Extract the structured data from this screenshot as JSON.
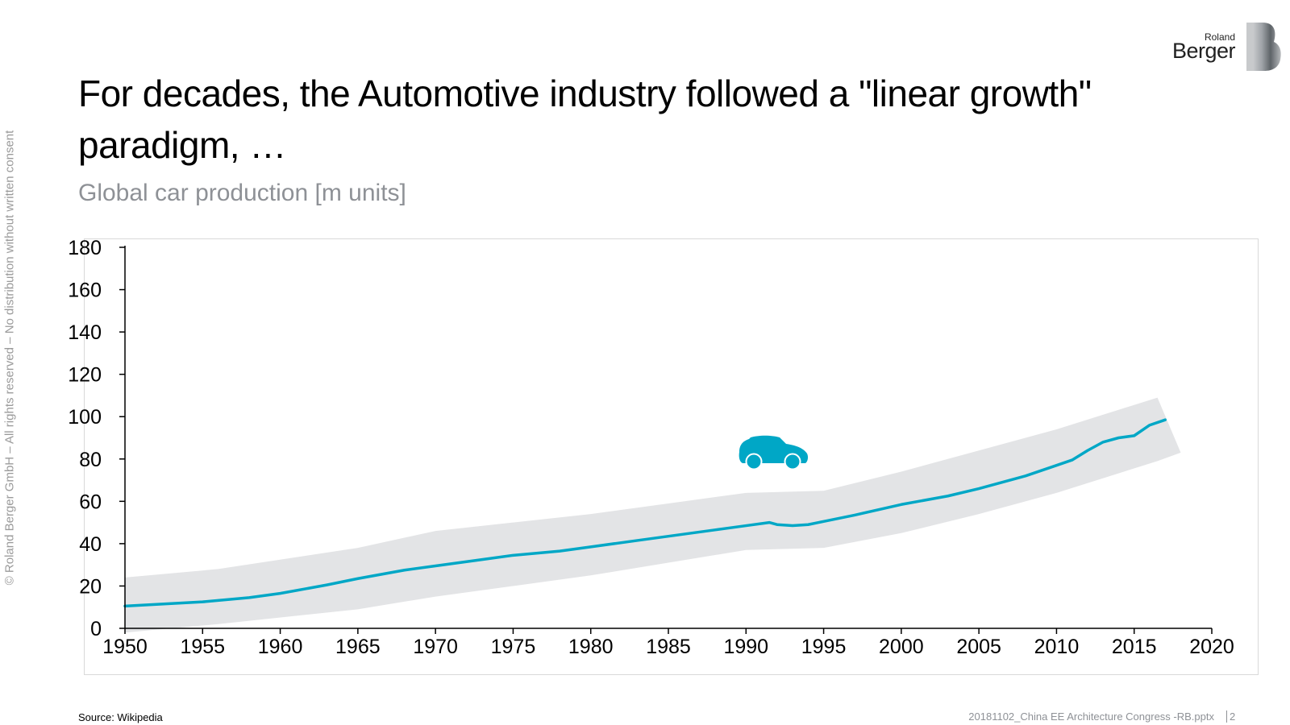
{
  "side_note": "© Roland Berger GmbH – All rights reserved – No distribution without written consent",
  "title": "For decades, the Automotive industry followed a \"linear growth\" paradigm, …",
  "logo": {
    "small": "Roland",
    "big": "Berger"
  },
  "footer": {
    "source": "Source: Wikipedia",
    "file": "20181102_China EE Architecture Congress -RB.pptx",
    "page": "2"
  },
  "colors": {
    "line": "#00a7c6",
    "band": "#e3e4e6",
    "axis": "#000000",
    "subtitle": "#8e9196"
  },
  "chart_data": {
    "type": "line",
    "title": "Global car production [m units]",
    "xlabel": "",
    "ylabel": "",
    "xlim": [
      1950,
      2020
    ],
    "ylim": [
      0,
      180
    ],
    "x_ticks": [
      "1950",
      "1955",
      "1960",
      "1965",
      "1970",
      "1975",
      "1980",
      "1985",
      "1990",
      "1995",
      "2000",
      "2005",
      "2010",
      "2015",
      "2020"
    ],
    "y_ticks": [
      "0",
      "20",
      "40",
      "60",
      "80",
      "100",
      "120",
      "140",
      "160",
      "180"
    ],
    "grid": false,
    "legend": "none",
    "annotation_icon": "car-icon",
    "series": [
      {
        "x": [
          1950,
          1955,
          1958,
          1960,
          1963,
          1965,
          1968,
          1970,
          1973,
          1975,
          1978,
          1980,
          1983,
          1985,
          1988,
          1990,
          1991.5,
          1992,
          1993,
          1994,
          1995,
          1997,
          2000,
          2003,
          2005,
          2008,
          2010,
          2011,
          2012,
          2013,
          2014,
          2015,
          2016,
          2017
        ],
        "y": [
          10.5,
          12.5,
          14.5,
          16.5,
          20.5,
          23.5,
          27.5,
          29.5,
          32.5,
          34.5,
          36.5,
          38.5,
          41.5,
          43.5,
          46.5,
          48.5,
          50,
          49,
          48.5,
          49,
          50.5,
          53.5,
          58.5,
          62.5,
          66,
          72,
          77,
          79.5,
          84,
          88,
          90,
          91,
          96,
          98.5
        ]
      }
    ],
    "band": {
      "x": [
        1950,
        1956,
        1965,
        1970,
        1975,
        1980,
        1985,
        1990,
        1995,
        2000,
        2005,
        2010,
        2016.5,
        2018
      ],
      "upper": [
        24,
        28,
        38,
        46,
        50,
        54,
        59,
        64,
        65,
        74,
        84,
        94,
        109,
        83
      ],
      "lower": [
        -2,
        2,
        9,
        15,
        20,
        25,
        31,
        37,
        38,
        45,
        54,
        64,
        79,
        83
      ]
    }
  }
}
